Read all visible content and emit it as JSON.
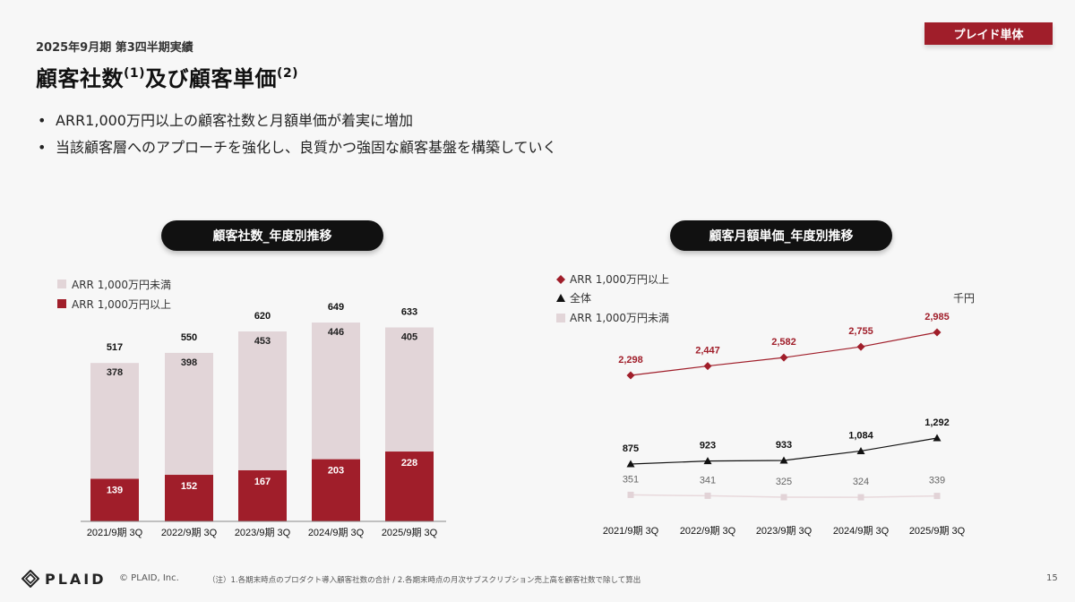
{
  "header": {
    "subtitle": "2025年9月期 第3四半期実績",
    "title_part1": "顧客社数",
    "title_sup1": "(1)",
    "title_part2": "及び顧客単価",
    "title_sup2": "(2)",
    "badge": "プレイド単体"
  },
  "bullets": [
    "ARR1,000万円以上の顧客社数と月額単価が着実に増加",
    "当該顧客層へのアプローチを強化し、良質かつ強固な顧客基盤を構築していく"
  ],
  "colors": {
    "accent": "#a01e2a",
    "light_bar": "#e2d5d8",
    "line_total": "#111111",
    "line_light": "#e8d9dc"
  },
  "chart_data": [
    {
      "type": "bar",
      "stacked": true,
      "title": "顧客社数_年度別推移",
      "categories": [
        "2021/9期 3Q",
        "2022/9期 3Q",
        "2023/9期 3Q",
        "2024/9期 3Q",
        "2025/9期 3Q"
      ],
      "series": [
        {
          "name": "ARR 1,000万円以上",
          "values": [
            139,
            152,
            167,
            203,
            228
          ]
        },
        {
          "name": "ARR 1,000万円未満",
          "values": [
            378,
            398,
            453,
            446,
            405
          ]
        }
      ],
      "totals": [
        517,
        550,
        620,
        649,
        633
      ],
      "legend_position": "top-left",
      "grid": false
    },
    {
      "type": "line",
      "title": "顧客月額単価_年度別推移",
      "unit": "千円",
      "categories": [
        "2021/9期 3Q",
        "2022/9期 3Q",
        "2023/9期 3Q",
        "2024/9期 3Q",
        "2025/9期 3Q"
      ],
      "series": [
        {
          "name": "ARR 1,000万円以上",
          "marker": "diamond",
          "values": [
            2298,
            2447,
            2582,
            2755,
            2985
          ]
        },
        {
          "name": "全体",
          "marker": "triangle",
          "values": [
            875,
            923,
            933,
            1084,
            1292
          ]
        },
        {
          "name": "ARR 1,000万円未満",
          "marker": "square",
          "values": [
            351,
            341,
            325,
            324,
            339
          ]
        }
      ],
      "legend_position": "top-left",
      "grid": false
    }
  ],
  "footer": {
    "logo": "PLAID",
    "copyright": "© PLAID, Inc.",
    "note": "（注）1.各期末時点のプロダクト導入顧客社数の合計 / 2.各期末時点の月次サブスクリプション売上高を顧客社数で除して算出",
    "page": "15"
  }
}
